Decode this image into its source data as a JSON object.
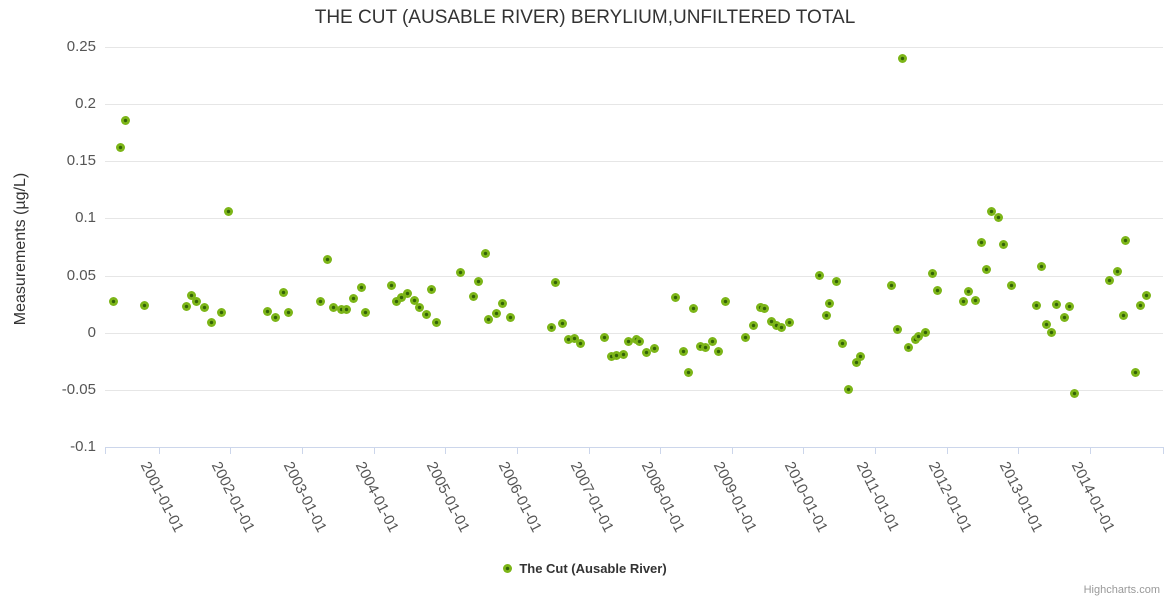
{
  "chart": {
    "title": "THE CUT (AUSABLE RIVER) BERYLIUM,UNFILTERED TOTAL",
    "y_axis_title": "Measurements (µg/L)",
    "legend_label": "The Cut (Ausable River)",
    "credits": "Highcharts.com"
  },
  "colors": {
    "marker_outer": "#7cb518",
    "marker_inner": "#336207",
    "grid": "#e6e6e6",
    "axis_line": "#ccd6eb",
    "title_text": "#333333",
    "axis_label_text": "#555555",
    "credits_text": "#999999"
  },
  "chart_data": {
    "type": "scatter",
    "title": "THE CUT (AUSABLE RIVER) BERYLIUM,UNFILTERED TOTAL",
    "xlabel": "",
    "ylabel": "Measurements (µg/L)",
    "xlim": [
      2000.25,
      2015.02
    ],
    "ylim": [
      -0.1,
      0.25
    ],
    "grid": true,
    "legend_position": "bottom-center",
    "y_ticks": [
      0.25,
      0.2,
      0.15,
      0.1,
      0.05,
      0,
      -0.05,
      -0.1
    ],
    "y_tick_labels": [
      "0.25",
      "0.2",
      "0.15",
      "0.1",
      "0.05",
      "0",
      "-0.05",
      "-0.1"
    ],
    "x_ticks": [
      2001,
      2002,
      2003,
      2004,
      2005,
      2006,
      2007,
      2008,
      2009,
      2010,
      2011,
      2012,
      2013,
      2014
    ],
    "x_tick_labels": [
      "2001-01-01",
      "2002-01-01",
      "2003-01-01",
      "2004-01-01",
      "2005-01-01",
      "2006-01-01",
      "2007-01-01",
      "2008-01-01",
      "2009-01-01",
      "2010-01-01",
      "2011-01-01",
      "2012-01-01",
      "2013-01-01",
      "2014-01-01"
    ],
    "series": [
      {
        "name": "The Cut (Ausable River)",
        "color": "#7cb518",
        "points": [
          [
            2000.37,
            0.027
          ],
          [
            2000.47,
            0.162
          ],
          [
            2000.53,
            0.186
          ],
          [
            2000.8,
            0.024
          ],
          [
            2001.39,
            0.023
          ],
          [
            2001.46,
            0.033
          ],
          [
            2001.53,
            0.027
          ],
          [
            2001.64,
            0.022
          ],
          [
            2001.73,
            0.009
          ],
          [
            2001.88,
            0.018
          ],
          [
            2001.98,
            0.106
          ],
          [
            2002.52,
            0.019
          ],
          [
            2002.63,
            0.013
          ],
          [
            2002.74,
            0.035
          ],
          [
            2002.81,
            0.018
          ],
          [
            2003.26,
            0.027
          ],
          [
            2003.36,
            0.064
          ],
          [
            2003.44,
            0.022
          ],
          [
            2003.55,
            0.02
          ],
          [
            2003.62,
            0.02
          ],
          [
            2003.72,
            0.03
          ],
          [
            2003.83,
            0.04
          ],
          [
            2003.89,
            0.018
          ],
          [
            2004.25,
            0.041
          ],
          [
            2004.32,
            0.027
          ],
          [
            2004.39,
            0.031
          ],
          [
            2004.47,
            0.034
          ],
          [
            2004.57,
            0.028
          ],
          [
            2004.64,
            0.022
          ],
          [
            2004.74,
            0.016
          ],
          [
            2004.81,
            0.038
          ],
          [
            2004.88,
            0.009
          ],
          [
            2005.21,
            0.053
          ],
          [
            2005.39,
            0.032
          ],
          [
            2005.46,
            0.045
          ],
          [
            2005.56,
            0.069
          ],
          [
            2005.6,
            0.012
          ],
          [
            2005.71,
            0.017
          ],
          [
            2005.8,
            0.026
          ],
          [
            2005.91,
            0.013
          ],
          [
            2006.48,
            0.005
          ],
          [
            2006.54,
            0.044
          ],
          [
            2006.63,
            0.008
          ],
          [
            2006.72,
            -0.006
          ],
          [
            2006.8,
            -0.005
          ],
          [
            2006.89,
            -0.009
          ],
          [
            2007.22,
            -0.004
          ],
          [
            2007.32,
            -0.021
          ],
          [
            2007.39,
            -0.02
          ],
          [
            2007.49,
            -0.019
          ],
          [
            2007.56,
            -0.008
          ],
          [
            2007.67,
            -0.006
          ],
          [
            2007.71,
            -0.008
          ],
          [
            2007.81,
            -0.017
          ],
          [
            2007.92,
            -0.014
          ],
          [
            2008.22,
            0.031
          ],
          [
            2008.32,
            -0.016
          ],
          [
            2008.39,
            -0.035
          ],
          [
            2008.46,
            0.021
          ],
          [
            2008.56,
            -0.012
          ],
          [
            2008.64,
            -0.013
          ],
          [
            2008.73,
            -0.008
          ],
          [
            2008.82,
            -0.016
          ],
          [
            2008.91,
            0.027
          ],
          [
            2009.19,
            -0.004
          ],
          [
            2009.31,
            0.006
          ],
          [
            2009.4,
            0.022
          ],
          [
            2009.45,
            0.021
          ],
          [
            2009.55,
            0.01
          ],
          [
            2009.62,
            0.006
          ],
          [
            2009.7,
            0.005
          ],
          [
            2009.8,
            0.009
          ],
          [
            2010.22,
            0.05
          ],
          [
            2010.32,
            0.015
          ],
          [
            2010.37,
            0.026
          ],
          [
            2010.46,
            0.045
          ],
          [
            2010.55,
            -0.009
          ],
          [
            2010.63,
            -0.05
          ],
          [
            2010.74,
            -0.026
          ],
          [
            2010.8,
            -0.021
          ],
          [
            2011.23,
            0.041
          ],
          [
            2011.31,
            0.003
          ],
          [
            2011.38,
            0.24
          ],
          [
            2011.47,
            -0.013
          ],
          [
            2011.56,
            -0.006
          ],
          [
            2011.61,
            -0.003
          ],
          [
            2011.71,
            0
          ],
          [
            2011.8,
            0.052
          ],
          [
            2011.87,
            0.037
          ],
          [
            2012.23,
            0.027
          ],
          [
            2012.3,
            0.036
          ],
          [
            2012.4,
            0.028
          ],
          [
            2012.48,
            0.079
          ],
          [
            2012.55,
            0.055
          ],
          [
            2012.63,
            0.106
          ],
          [
            2012.72,
            0.101
          ],
          [
            2012.8,
            0.077
          ],
          [
            2012.91,
            0.041
          ],
          [
            2013.25,
            0.024
          ],
          [
            2013.32,
            0.058
          ],
          [
            2013.4,
            0.007
          ],
          [
            2013.47,
            0
          ],
          [
            2013.53,
            0.025
          ],
          [
            2013.64,
            0.013
          ],
          [
            2013.72,
            0.023
          ],
          [
            2013.79,
            -0.053
          ],
          [
            2014.28,
            0.046
          ],
          [
            2014.39,
            0.054
          ],
          [
            2014.47,
            0.015
          ],
          [
            2014.5,
            0.081
          ],
          [
            2014.64,
            -0.035
          ],
          [
            2014.71,
            0.024
          ],
          [
            2014.79,
            0.033
          ]
        ]
      }
    ]
  }
}
